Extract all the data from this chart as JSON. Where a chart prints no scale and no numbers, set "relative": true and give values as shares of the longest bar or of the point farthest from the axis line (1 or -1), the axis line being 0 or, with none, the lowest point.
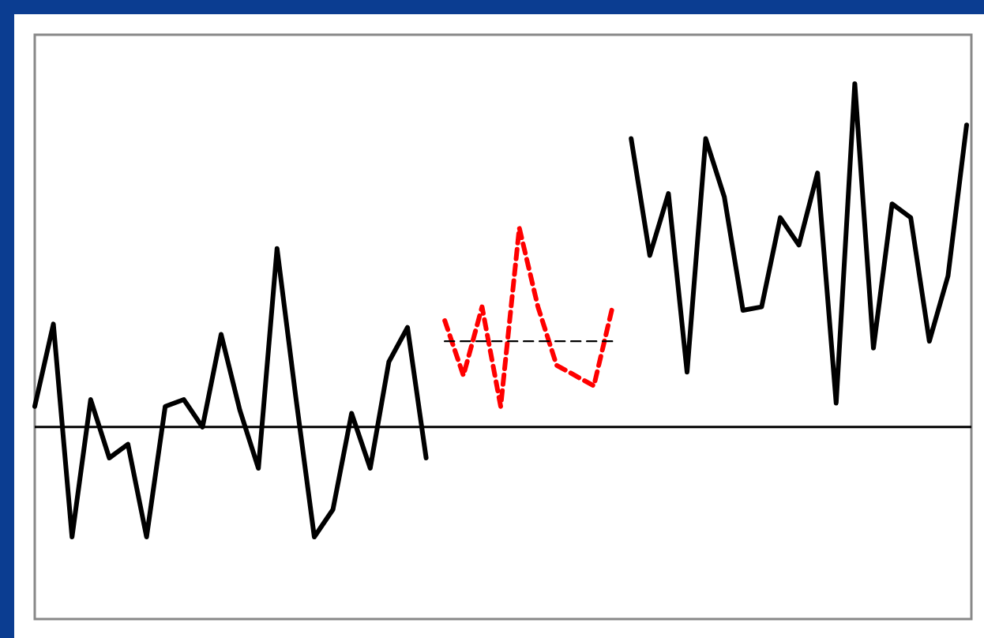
{
  "chart_data": {
    "type": "line",
    "relative": true,
    "categories": [
      null,
      null,
      null,
      null,
      null,
      null,
      null,
      null,
      null,
      null,
      null,
      null,
      null,
      null,
      null,
      null,
      null,
      null,
      null,
      null,
      null,
      null,
      null,
      null,
      null,
      null,
      null,
      null,
      null,
      null,
      null,
      null,
      null,
      null,
      null,
      null,
      null,
      null,
      null,
      null,
      null,
      null,
      null,
      null,
      null,
      null,
      null,
      null,
      null,
      null,
      null
    ],
    "marker": "none",
    "series": [
      {
        "color": "#000000",
        "line_style": "solid",
        "values": [
          0.06,
          0.3,
          -0.32,
          0.08,
          -0.09,
          -0.05,
          -0.32,
          0.06,
          0.08,
          0,
          0.27,
          0.05,
          -0.12,
          0.52,
          0.09,
          -0.32,
          -0.24,
          0.04,
          -0.12,
          0.19,
          0.29,
          -0.09,
          null,
          null,
          null,
          null,
          null,
          null,
          null,
          null,
          null,
          null,
          null,
          null,
          null,
          null,
          null,
          null,
          null,
          null,
          null,
          null,
          null,
          null,
          null,
          null,
          null,
          null,
          null,
          null,
          null
        ]
      },
      {
        "color": "#ff0000",
        "line_style": "dashed",
        "values": [
          null,
          null,
          null,
          null,
          null,
          null,
          null,
          null,
          null,
          null,
          null,
          null,
          null,
          null,
          null,
          null,
          null,
          null,
          null,
          null,
          null,
          null,
          0.31,
          0.15,
          0.35,
          0.06,
          0.58,
          0.35,
          0.18,
          0.15,
          0.12,
          0.35,
          null,
          null,
          null,
          null,
          null,
          null,
          null,
          null,
          null,
          null,
          null,
          null,
          null,
          null,
          null,
          null,
          null,
          null,
          null
        ]
      },
      {
        "color": "#000000",
        "line_style": "dashed",
        "values": [
          null,
          null,
          null,
          null,
          null,
          null,
          null,
          null,
          null,
          null,
          null,
          null,
          null,
          null,
          null,
          null,
          null,
          null,
          null,
          null,
          null,
          null,
          0.25,
          0.25,
          0.25,
          0.25,
          0.25,
          0.25,
          0.25,
          0.25,
          0.25,
          0.25,
          null,
          null,
          null,
          null,
          null,
          null,
          null,
          null,
          null,
          null,
          null,
          null,
          null,
          null,
          null,
          null,
          null,
          null,
          null
        ]
      },
      {
        "color": "#000000",
        "line_style": "solid",
        "values": [
          null,
          null,
          null,
          null,
          null,
          null,
          null,
          null,
          null,
          null,
          null,
          null,
          null,
          null,
          null,
          null,
          null,
          null,
          null,
          null,
          null,
          null,
          null,
          null,
          null,
          null,
          null,
          null,
          null,
          null,
          null,
          null,
          0.84,
          0.5,
          0.68,
          0.16,
          0.84,
          0.67,
          0.34,
          0.35,
          0.61,
          0.53,
          0.74,
          0.07,
          1,
          0.23,
          0.65,
          0.61,
          0.25,
          0.44,
          0.88
        ]
      }
    ]
  }
}
